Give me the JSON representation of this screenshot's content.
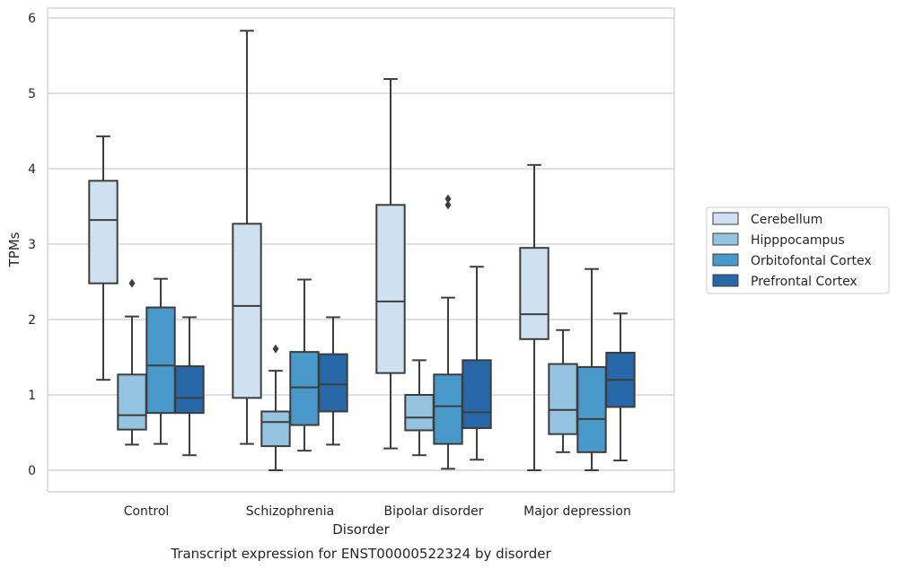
{
  "chart_data": {
    "type": "box",
    "title": "Transcript expression for ENST00000522324 by disorder",
    "xlabel": "Disorder",
    "ylabel": "TPMs",
    "ylim": [
      -0.28,
      6.12
    ],
    "yticks": [
      0,
      1,
      2,
      3,
      4,
      5,
      6
    ],
    "grid": true,
    "legend_position": "right",
    "categories": [
      "Control",
      "Schizophrenia",
      "Bipolar disorder",
      "Major depression"
    ],
    "series": [
      {
        "name": "Cerebellum",
        "color": "#cfe0f1",
        "boxes": [
          {
            "min": 1.2,
            "q1": 2.48,
            "median": 3.32,
            "q3": 3.84,
            "max": 4.43,
            "outliers": []
          },
          {
            "min": 0.35,
            "q1": 0.96,
            "median": 2.18,
            "q3": 3.27,
            "max": 5.83,
            "outliers": []
          },
          {
            "min": 0.29,
            "q1": 1.29,
            "median": 2.24,
            "q3": 3.52,
            "max": 5.19,
            "outliers": []
          },
          {
            "min": 0.0,
            "q1": 1.74,
            "median": 2.07,
            "q3": 2.95,
            "max": 4.05,
            "outliers": []
          }
        ]
      },
      {
        "name": "Hipppocampus",
        "color": "#94c4df",
        "boxes": [
          {
            "min": 0.34,
            "q1": 0.54,
            "median": 0.73,
            "q3": 1.27,
            "max": 2.04,
            "outliers": [
              2.48
            ]
          },
          {
            "min": 0.0,
            "q1": 0.32,
            "median": 0.64,
            "q3": 0.78,
            "max": 1.32,
            "outliers": [
              1.61
            ]
          },
          {
            "min": 0.2,
            "q1": 0.53,
            "median": 0.7,
            "q3": 1.0,
            "max": 1.46,
            "outliers": []
          },
          {
            "min": 0.24,
            "q1": 0.48,
            "median": 0.8,
            "q3": 1.41,
            "max": 1.86,
            "outliers": []
          }
        ]
      },
      {
        "name": "Orbitofontal Cortex",
        "color": "#4a98c9",
        "boxes": [
          {
            "min": 0.35,
            "q1": 0.76,
            "median": 1.39,
            "q3": 2.16,
            "max": 2.54,
            "outliers": []
          },
          {
            "min": 0.26,
            "q1": 0.6,
            "median": 1.1,
            "q3": 1.57,
            "max": 2.53,
            "outliers": []
          },
          {
            "min": 0.02,
            "q1": 0.35,
            "median": 0.85,
            "q3": 1.27,
            "max": 2.29,
            "outliers": [
              3.52,
              3.6
            ]
          },
          {
            "min": 0.0,
            "q1": 0.24,
            "median": 0.68,
            "q3": 1.37,
            "max": 2.67,
            "outliers": []
          }
        ]
      },
      {
        "name": "Prefrontal Cortex",
        "color": "#2868a9",
        "boxes": [
          {
            "min": 0.2,
            "q1": 0.76,
            "median": 0.96,
            "q3": 1.38,
            "max": 2.03,
            "outliers": []
          },
          {
            "min": 0.34,
            "q1": 0.78,
            "median": 1.14,
            "q3": 1.54,
            "max": 2.03,
            "outliers": []
          },
          {
            "min": 0.14,
            "q1": 0.56,
            "median": 0.77,
            "q3": 1.46,
            "max": 2.7,
            "outliers": []
          },
          {
            "min": 0.13,
            "q1": 0.84,
            "median": 1.2,
            "q3": 1.56,
            "max": 2.08,
            "outliers": []
          }
        ]
      }
    ]
  }
}
